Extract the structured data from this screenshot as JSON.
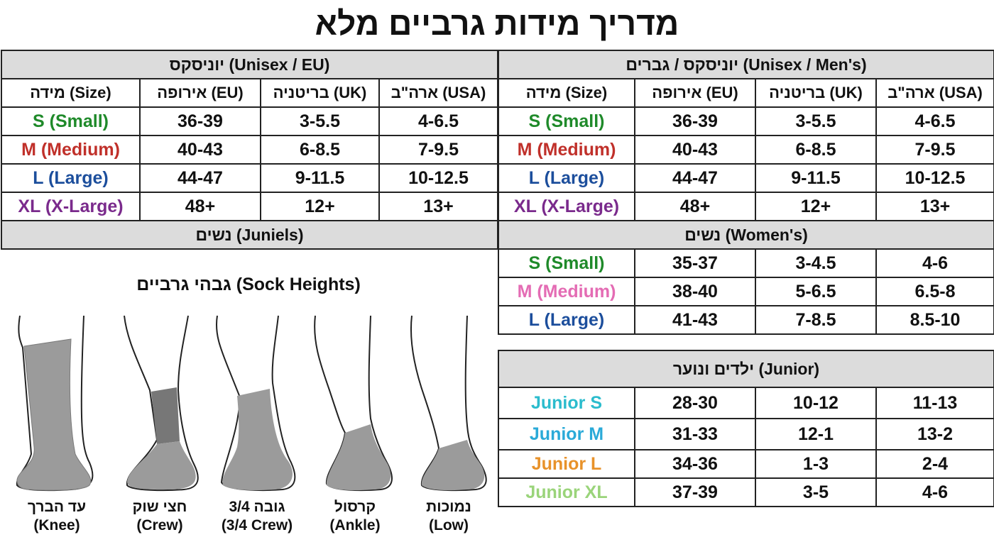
{
  "title": "מדריך מידות גרביים מלא",
  "column_headers": {
    "size": "מידה (Size)",
    "eu": "אירופה (EU)",
    "uk": "בריטניה (UK)",
    "usa": "ארה\"ב (USA)"
  },
  "left_table": {
    "header": "יוניסקס (Unisex / EU)",
    "rows": [
      {
        "size": "S (Small)",
        "eu": "36-39",
        "uk": "3-5.5",
        "usa": "4-6.5"
      },
      {
        "size": "M (Medium)",
        "eu": "40-43",
        "uk": "6-8.5",
        "usa": "7-9.5"
      },
      {
        "size": "L (Large)",
        "eu": "44-47",
        "uk": "9-11.5",
        "usa": "10-12.5"
      },
      {
        "size": "XL (X-Large)",
        "eu": "48+",
        "uk": "12+",
        "usa": "13+"
      }
    ],
    "footer": "נשים (Juniels)"
  },
  "right_table": {
    "header": "יוניסקס / גברים (Unisex / Men's)",
    "rows": [
      {
        "size": "S (Small)",
        "eu": "36-39",
        "uk": "3-5.5",
        "usa": "4-6.5"
      },
      {
        "size": "M (Medium)",
        "eu": "40-43",
        "uk": "6-8.5",
        "usa": "7-9.5"
      },
      {
        "size": "L (Large)",
        "eu": "44-47",
        "uk": "9-11.5",
        "usa": "10-12.5"
      },
      {
        "size": "XL (X-Large)",
        "eu": "48+",
        "uk": "12+",
        "usa": "13+"
      }
    ],
    "women_header": "נשים (Women's)",
    "women_rows": [
      {
        "size": "S (Small)",
        "eu": "35-37",
        "uk": "3-4.5",
        "usa": "4-6"
      },
      {
        "size": "M (Medium)",
        "eu": "38-40",
        "uk": "5-6.5",
        "usa": "6.5-8"
      },
      {
        "size": "L (Large)",
        "eu": "41-43",
        "uk": "7-8.5",
        "usa": "8.5-10"
      }
    ]
  },
  "junior_table": {
    "header": "ילדים ונוער (Junior)",
    "rows": [
      {
        "size": "Junior S",
        "eu": "28-30",
        "uk": "10-12",
        "usa": "11-13"
      },
      {
        "size": "Junior M",
        "eu": "31-33",
        "uk": "12-1",
        "usa": "13-2"
      },
      {
        "size": "Junior L",
        "eu": "34-36",
        "uk": "1-3",
        "usa": "2-4"
      },
      {
        "size": "Junior XL",
        "eu": "37-39",
        "uk": "3-5",
        "usa": "4-6"
      }
    ]
  },
  "sock_heights": {
    "title": "גבהי גרביים (Sock Heights)",
    "items": [
      {
        "he": "עד הברך",
        "en": "(Knee)"
      },
      {
        "he": "חצי שוק",
        "en": "(Crew)"
      },
      {
        "he": "3/4 גובה",
        "en": "(3/4 Crew)"
      },
      {
        "he": "קרסול",
        "en": "(Ankle)"
      },
      {
        "he": "נמוכות",
        "en": "(Low)"
      }
    ]
  },
  "colors": {
    "small": "#1f8a2a",
    "medium": "#c0302a",
    "large": "#1c4e9c",
    "xlarge": "#7a2a8c",
    "women_medium": "#e46cb4",
    "junior_s": "#2bbccd",
    "junior_m": "#2aaad8",
    "junior_l": "#e8922a",
    "junior_xl": "#9ad47a",
    "header_bg": "#dcdcdc",
    "sock_gray": "#9b9b9b"
  }
}
